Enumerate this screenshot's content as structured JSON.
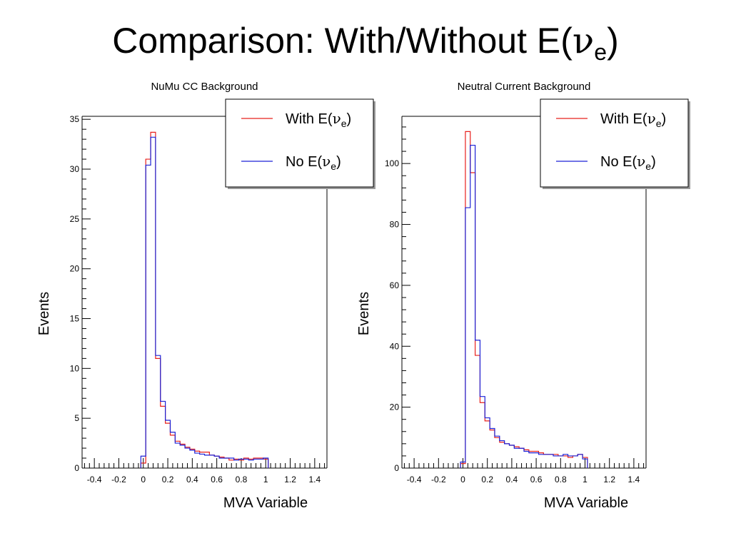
{
  "slide": {
    "title_prefix": "Comparison: With/Without E(",
    "title_symbol": "ν",
    "title_subscript": "e",
    "title_suffix": ")"
  },
  "chart_data": [
    {
      "type": "histogram",
      "title": "NuMu CC Background",
      "xlabel": "MVA Variable",
      "ylabel": "Events",
      "xlim": [
        -0.5,
        1.5
      ],
      "ylim": [
        0,
        35.3
      ],
      "xticks": [
        "-0.4",
        "-0.2",
        "0",
        "0.2",
        "0.4",
        "0.6",
        "0.8",
        "1",
        "1.2",
        "1.4"
      ],
      "yticks": [
        "0",
        "5",
        "10",
        "15",
        "20",
        "25",
        "30",
        "35"
      ],
      "bin_width": 0.04,
      "bin_start": -0.02,
      "legend": {
        "position": "top-right"
      },
      "series": [
        {
          "name_text": "With E(",
          "name_symbol": "ν",
          "name_sub": "e",
          "name_close": ")",
          "color": "#e8201c",
          "values": [
            0.5,
            31.0,
            33.7,
            11.0,
            6.2,
            4.5,
            3.3,
            2.7,
            2.4,
            2.1,
            1.9,
            1.7,
            1.6,
            1.6,
            1.3,
            1.2,
            1.1,
            1.0,
            0.8,
            0.9,
            0.8,
            1.0,
            0.9,
            1.0,
            1.0,
            0.9
          ]
        },
        {
          "name_text": "No E(",
          "name_symbol": "ν",
          "name_sub": "e",
          "name_close": ")",
          "color": "#1c22d6",
          "values": [
            1.2,
            30.4,
            33.2,
            11.3,
            6.7,
            4.8,
            3.6,
            2.5,
            2.3,
            2.0,
            1.8,
            1.5,
            1.4,
            1.3,
            1.3,
            1.2,
            1.0,
            1.0,
            1.0,
            0.8,
            0.9,
            0.9,
            0.8,
            0.9,
            0.9,
            1.0
          ]
        }
      ]
    },
    {
      "type": "histogram",
      "title": "Neutral Current Background",
      "xlabel": "MVA Variable",
      "ylabel": "Events",
      "xlim": [
        -0.5,
        1.5
      ],
      "ylim": [
        0,
        115.5
      ],
      "xticks": [
        "-0.4",
        "-0.2",
        "0",
        "0.2",
        "0.4",
        "0.6",
        "0.8",
        "1",
        "1.2",
        "1.4"
      ],
      "yticks": [
        "0",
        "20",
        "40",
        "60",
        "80",
        "100"
      ],
      "bin_width": 0.04,
      "bin_start": -0.02,
      "legend": {
        "position": "top-right"
      },
      "series": [
        {
          "name_text": "With E(",
          "name_symbol": "ν",
          "name_sub": "e",
          "name_close": ")",
          "color": "#e8201c",
          "values": [
            1.5,
            110.5,
            97.0,
            37.0,
            21.5,
            15.5,
            12.5,
            10.0,
            8.5,
            8.0,
            7.5,
            7.0,
            6.5,
            6.0,
            5.5,
            5.5,
            5.0,
            4.5,
            4.5,
            4.5,
            4.0,
            4.0,
            3.5,
            4.0,
            4.5,
            3.5
          ]
        },
        {
          "name_text": "No E(",
          "name_symbol": "ν",
          "name_sub": "e",
          "name_close": ")",
          "color": "#1c22d6",
          "values": [
            2.0,
            85.5,
            106.0,
            42.0,
            23.5,
            16.5,
            13.0,
            10.5,
            9.0,
            8.0,
            7.5,
            6.5,
            6.5,
            5.5,
            5.0,
            5.0,
            4.5,
            4.5,
            4.5,
            4.0,
            4.0,
            4.5,
            4.0,
            4.0,
            4.5,
            3.0
          ]
        }
      ]
    }
  ]
}
